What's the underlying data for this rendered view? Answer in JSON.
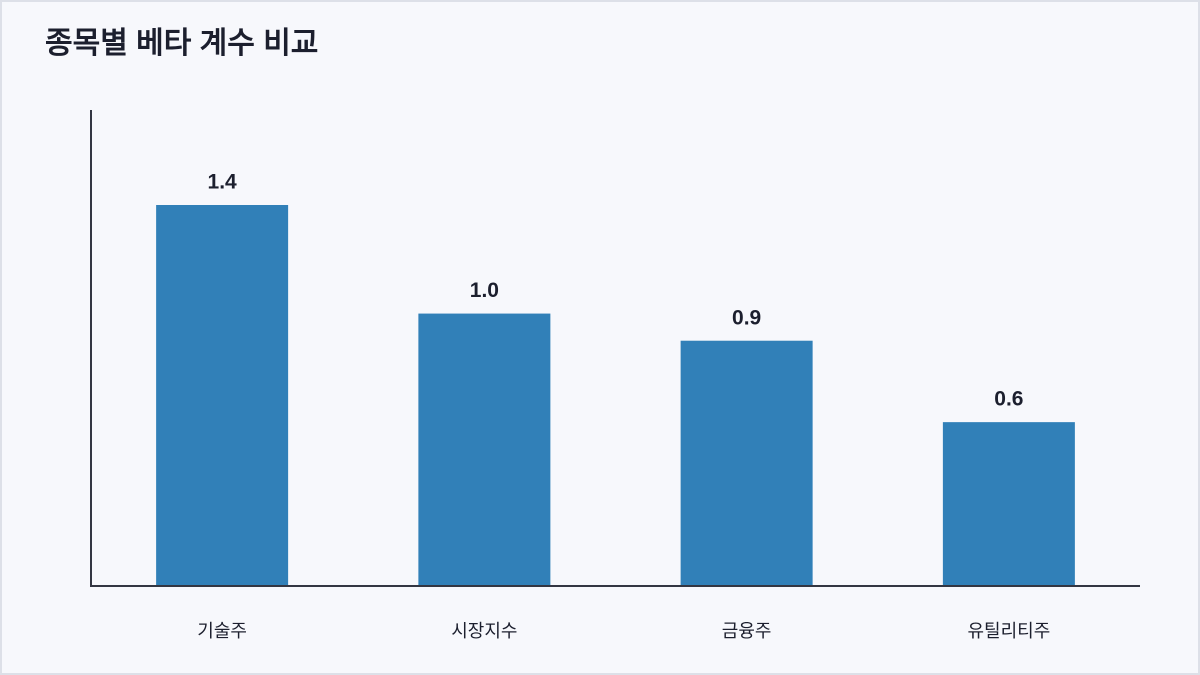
{
  "chart_data": {
    "type": "bar",
    "title": "종목별 베타 계수 비교",
    "categories": [
      "기술주",
      "시장지수",
      "금융주",
      "유틸리티주"
    ],
    "values": [
      1.4,
      1.0,
      0.9,
      0.6
    ],
    "value_labels": [
      "1.4",
      "1.0",
      "0.9",
      "0.6"
    ],
    "color": "#3180b8",
    "ylim": [
      0,
      1.75
    ]
  }
}
